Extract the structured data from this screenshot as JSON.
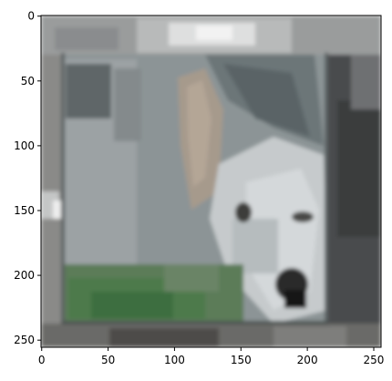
{
  "figure": {
    "x_ticks": [
      "0",
      "50",
      "100",
      "150",
      "200",
      "250"
    ],
    "y_ticks": [
      "0",
      "50",
      "100",
      "150",
      "200",
      "250"
    ],
    "x_range": [
      0,
      256
    ],
    "y_range": [
      0,
      256
    ],
    "y_axis_inverted": true,
    "frame_color": "#000000"
  },
  "image": {
    "subject": "pixelated photo of a grey and white dog's head resting over the edge of a box",
    "colors": {
      "box_grey": "#8c9496",
      "fur_light": "#c8ccce",
      "fur_dark": "#6a7274",
      "grass_green": "#4e7a4c",
      "background_dark": "#3c3e40",
      "highlight_white": "#e8eaea"
    }
  }
}
